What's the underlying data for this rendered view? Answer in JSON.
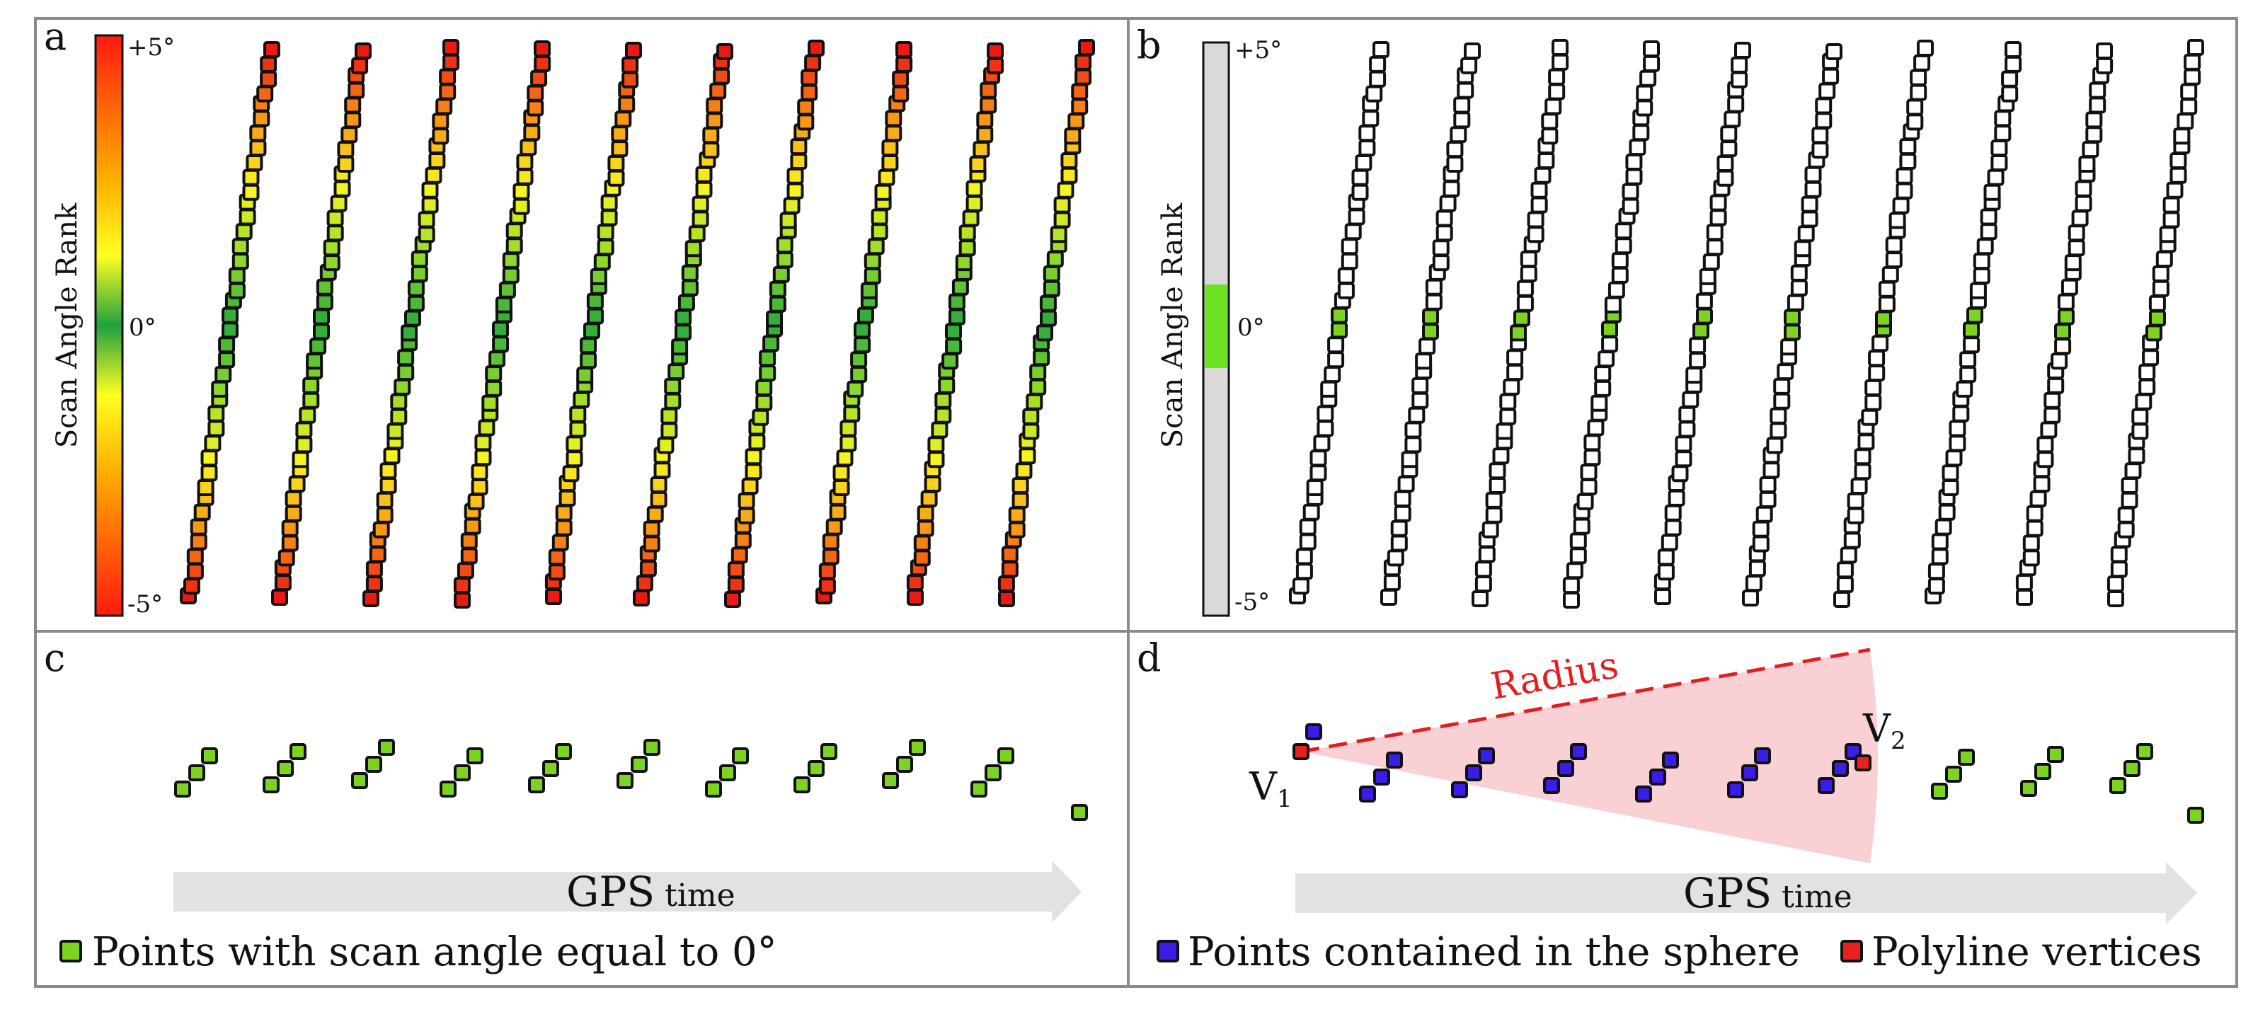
{
  "panels": {
    "a": {
      "letter": "a"
    },
    "b": {
      "letter": "b"
    },
    "c": {
      "letter": "c"
    },
    "d": {
      "letter": "d"
    }
  },
  "colorbar": {
    "title": "Scan Angle Rank",
    "top_label": "+5°",
    "mid_label": "0°",
    "bottom_label": "-5°",
    "range_deg": [
      -5,
      5
    ]
  },
  "panel_c": {
    "gps_main": "GPS",
    "gps_sub": "time",
    "legend": "Points with scan angle equal to 0°"
  },
  "panel_d": {
    "radius_label": "Radius",
    "v1_main": "V",
    "v1_sub": "1",
    "v2_main": "V",
    "v2_sub": "2",
    "gps_main": "GPS",
    "gps_sub": "time",
    "legend_blue": "Points contained in the sphere",
    "legend_red": "Polyline vertices"
  },
  "colors": {
    "zero_angle": "#7ed321",
    "sphere": "#3a1ee6",
    "vertex": "#e82020",
    "empty": "#ffffff",
    "radius": "#e02020",
    "sector": "#f8c8cc",
    "arrow": "#e2e2e2",
    "colorbar_gray": "#d9d9d9",
    "colorbar_green": "#6be321"
  },
  "diagram": {
    "scan_lines": 10,
    "points_per_line": 40
  }
}
